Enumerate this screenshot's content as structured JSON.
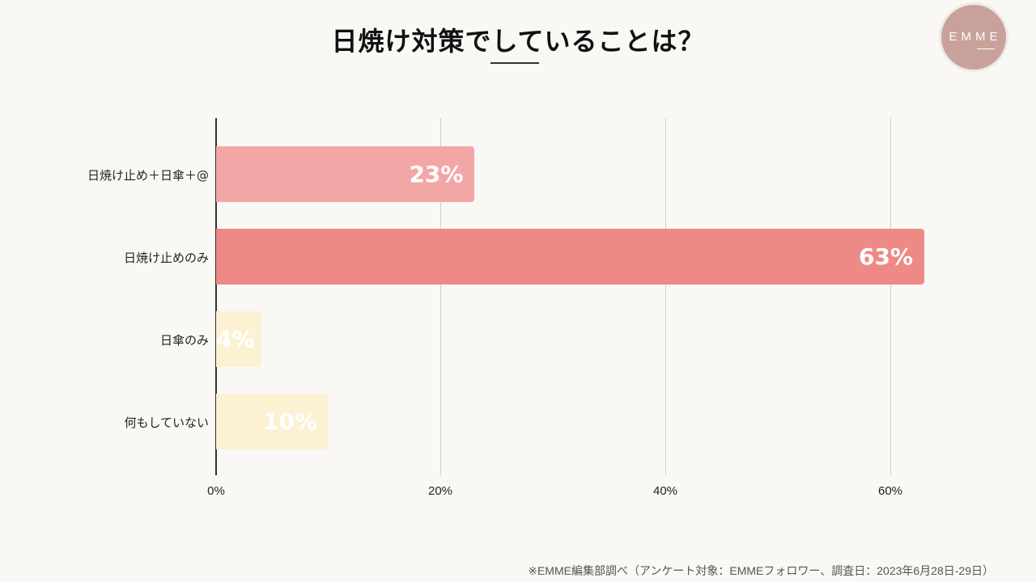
{
  "title": "日焼け対策でしていることは？",
  "logo": {
    "text": "EMME"
  },
  "footnote": "※EMME編集部調べ（アンケート対象：EMMEフォロワー、調査日：2023年6月28日-29日）",
  "chart_data": {
    "type": "bar",
    "orientation": "horizontal",
    "title": "日焼け対策でしていることは？",
    "categories": [
      "日焼け止め＋日傘＋@",
      "日焼け止めのみ",
      "日傘のみ",
      "何もしていない"
    ],
    "values": [
      23,
      63,
      4,
      10
    ],
    "value_labels": [
      "23%",
      "63%",
      "4%",
      "10%"
    ],
    "colors": [
      "#f2a7a6",
      "#ee8a86",
      "#fcf1d3",
      "#fcf1d3"
    ],
    "xlabel": "",
    "ylabel": "",
    "xlim": [
      0,
      63
    ],
    "xticks": [
      "0%",
      "20%",
      "40%",
      "60%"
    ],
    "grid": true,
    "legend": null
  }
}
